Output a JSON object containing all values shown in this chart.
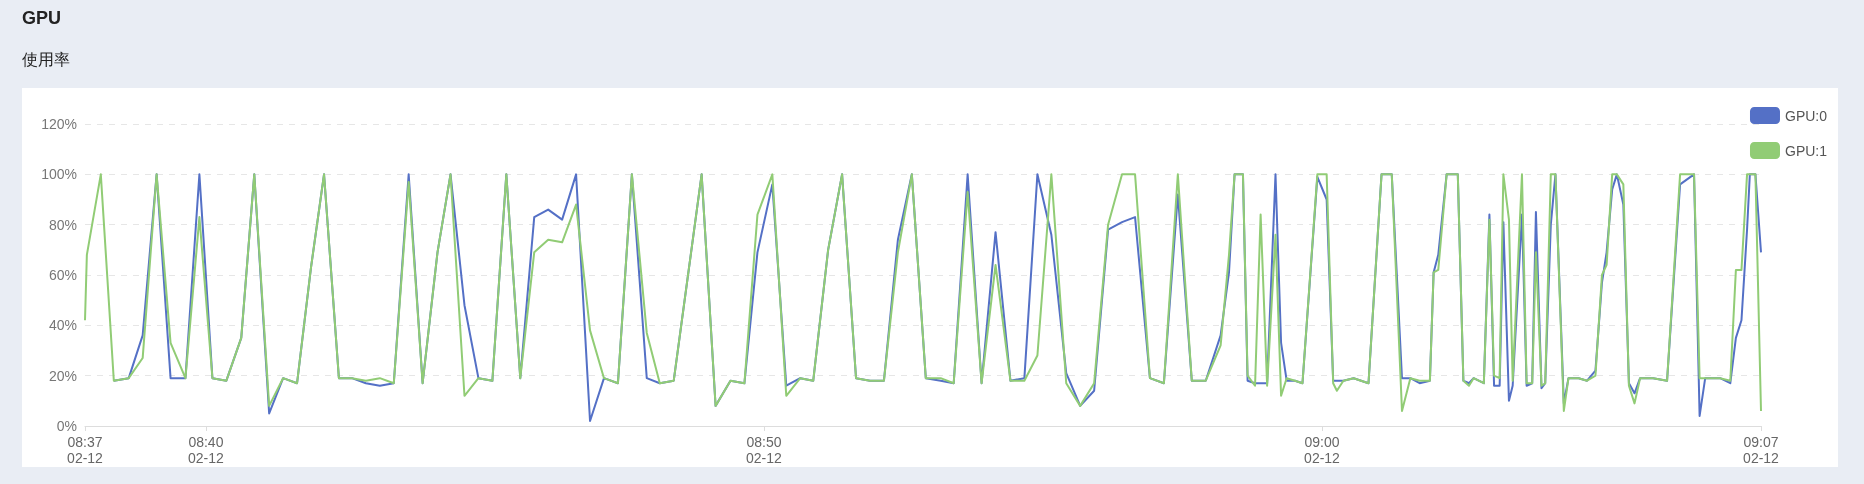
{
  "chart_data": {
    "type": "line",
    "title": "GPU",
    "subtitle": "使用率",
    "marker": "none",
    "grid": "y",
    "legend": "top right",
    "xlim": [
      "--02-12T08:37:50",
      "--02-12T09:07:52"
    ],
    "xticks": [
      {
        "value": "--02-12T08:37:50",
        "label": "08:37\n02-12"
      },
      {
        "value": "--02-12T08:40",
        "label": "08:40\n02-12"
      },
      {
        "value": "--02-12T08:50",
        "label": "08:50\n02-12"
      },
      {
        "value": "--02-12T09:00",
        "label": "09:00\n02-12"
      },
      {
        "value": "--02-12T09:07:52",
        "label": "09:07\n02-12"
      }
    ],
    "ylim": [
      0,
      120
    ],
    "yticks": [
      {
        "value": 0,
        "label": "0%"
      },
      {
        "value": 20,
        "label": "20%"
      },
      {
        "value": 40,
        "label": "40%"
      },
      {
        "value": 60,
        "label": "60%"
      },
      {
        "value": 80,
        "label": "80%"
      },
      {
        "value": 100,
        "label": "100%"
      },
      {
        "value": 120,
        "label": "120%"
      }
    ],
    "x": [
      "--02-12T08:37:50",
      "--02-12T08:37:52",
      "--02-12T08:38:07",
      "--02-12T08:38:21",
      "--02-12T08:38:37",
      "--02-12T08:38:52",
      "--02-12T08:39:07",
      "--02-12T08:39:22",
      "--02-12T08:39:38",
      "--02-12T08:39:53",
      "--02-12T08:40:07",
      "--02-12T08:40:22",
      "--02-12T08:40:38",
      "--02-12T08:40:52",
      "--02-12T08:41:08",
      "--02-12T08:41:23",
      "--02-12T08:41:38",
      "--02-12T08:41:53",
      "--02-12T08:42:07",
      "--02-12T08:42:23",
      "--02-12T08:42:37",
      "--02-12T08:42:52",
      "--02-12T08:43:07",
      "--02-12T08:43:22",
      "--02-12T08:43:38",
      "--02-12T08:43:53",
      "--02-12T08:44:09",
      "--02-12T08:44:23",
      "--02-12T08:44:38",
      "--02-12T08:44:53",
      "--02-12T08:45:08",
      "--02-12T08:45:23",
      "--02-12T08:45:38",
      "--02-12T08:45:53",
      "--02-12T08:46:08",
      "--02-12T08:46:23",
      "--02-12T08:46:38",
      "--02-12T08:46:53",
      "--02-12T08:47:08",
      "--02-12T08:47:23",
      "--02-12T08:47:38",
      "--02-12T08:47:54",
      "--02-12T08:48:08",
      "--02-12T08:48:23",
      "--02-12T08:48:53",
      "--02-12T08:49:08",
      "--02-12T08:49:24",
      "--02-12T08:49:39",
      "--02-12T08:49:53",
      "--02-12T08:50:09",
      "--02-12T08:50:24",
      "--02-12T08:50:39",
      "--02-12T08:50:53",
      "--02-12T08:51:09",
      "--02-12T08:51:24",
      "--02-12T08:51:39",
      "--02-12T08:51:54",
      "--02-12T08:52:09",
      "--02-12T08:52:24",
      "--02-12T08:52:39",
      "--02-12T08:52:54",
      "--02-12T08:53:10",
      "--02-12T08:53:24",
      "--02-12T08:53:39",
      "--02-12T08:53:54",
      "--02-12T08:54:09",
      "--02-12T08:54:25",
      "--02-12T08:54:40",
      "--02-12T08:54:54",
      "--02-12T08:55:09",
      "--02-12T08:55:25",
      "--02-12T08:55:40",
      "--02-12T08:55:55",
      "--02-12T08:56:10",
      "--02-12T08:56:25",
      "--02-12T08:56:39",
      "--02-12T08:56:55",
      "--02-12T08:57:10",
      "--02-12T08:57:25",
      "--02-12T08:57:40",
      "--02-12T08:57:55",
      "--02-12T08:58:11",
      "--02-12T08:58:20",
      "--02-12T08:58:26",
      "--02-12T08:58:35",
      "--02-12T08:58:40",
      "--02-12T08:58:48",
      "--02-12T08:58:54",
      "--02-12T08:59:01",
      "--02-12T08:59:10",
      "--02-12T08:59:16",
      "--02-12T08:59:22",
      "--02-12T08:59:31",
      "--02-12T08:59:39",
      "--02-12T08:59:55",
      "--02-12T09:00:05",
      "--02-12T09:00:12",
      "--02-12T09:00:16",
      "--02-12T09:00:23",
      "--02-12T09:00:34",
      "--02-12T09:00:50",
      "--02-12T09:01:04",
      "--02-12T09:01:15",
      "--02-12T09:01:26",
      "--02-12T09:01:35",
      "--02-12T09:01:45",
      "--02-12T09:01:56",
      "--02-12T09:02:00",
      "--02-12T09:02:05",
      "--02-12T09:02:14",
      "--02-12T09:02:26",
      "--02-12T09:02:32",
      "--02-12T09:02:38",
      "--02-12T09:02:43",
      "--02-12T09:02:54",
      "--02-12T09:03:00",
      "--02-12T09:03:05",
      "--02-12T09:03:11",
      "--02-12T09:03:15",
      "--02-12T09:03:21",
      "--02-12T09:03:25",
      "--02-12T09:03:35",
      "--02-12T09:03:40",
      "--02-12T09:03:46",
      "--02-12T09:03:50",
      "--02-12T09:03:56",
      "--02-12T09:04:00",
      "--02-12T09:04:06",
      "--02-12T09:04:11",
      "--02-12T09:04:20",
      "--02-12T09:04:25",
      "--02-12T09:04:36",
      "--02-12T09:04:45",
      "--02-12T09:04:54",
      "--02-12T09:05:01",
      "--02-12T09:05:06",
      "--02-12T09:05:12",
      "--02-12T09:05:17",
      "--02-12T09:05:24",
      "--02-12T09:05:30",
      "--02-12T09:05:36",
      "--02-12T09:05:42",
      "--02-12T09:05:56",
      "--02-12T09:06:11",
      "--02-12T09:06:25",
      "--02-12T09:06:40",
      "--02-12T09:06:46",
      "--02-12T09:06:52",
      "--02-12T09:07:08",
      "--02-12T09:07:19",
      "--02-12T09:07:25",
      "--02-12T09:07:31",
      "--02-12T09:07:37",
      "--02-12T09:07:40",
      "--02-12T09:07:46",
      "--02-12T09:07:52"
    ],
    "series": [
      {
        "name": "GPU:0",
        "color": "#5470c6",
        "values": [
          null,
          null,
          null,
          18,
          19,
          36,
          100,
          19,
          19,
          100,
          19,
          18,
          35,
          100,
          5,
          19,
          17,
          63,
          100,
          19,
          19,
          17,
          16,
          17,
          100,
          17,
          69,
          100,
          48,
          19,
          18,
          100,
          19,
          83,
          86,
          82,
          100,
          2,
          19,
          17,
          100,
          19,
          17,
          18,
          100,
          8,
          18,
          17,
          69,
          96,
          16,
          19,
          18,
          70,
          100,
          19,
          18,
          18,
          74,
          100,
          19,
          18,
          17,
          100,
          17,
          77,
          18,
          19,
          100,
          76,
          21,
          8,
          14,
          78,
          81,
          83,
          19,
          17,
          92,
          18,
          18,
          36,
          61,
          100,
          100,
          18,
          17,
          17,
          17,
          100,
          33,
          18,
          18,
          17,
          99,
          90,
          18,
          18,
          18,
          19,
          17,
          100,
          100,
          19,
          19,
          17,
          18,
          61,
          68,
          100,
          100,
          18,
          17,
          19,
          17,
          84,
          16,
          16,
          81,
          10,
          16,
          84,
          16,
          17,
          85,
          15,
          17,
          80,
          100,
          9,
          19,
          19,
          18,
          22,
          57,
          69,
          94,
          100,
          88,
          17,
          13,
          19,
          19,
          18,
          96,
          100,
          4,
          19,
          19,
          17,
          35,
          42,
          78,
          100,
          100,
          69
        ]
      },
      {
        "name": "GPU:1",
        "color": "#91cc75",
        "values": [
          42,
          68,
          100,
          18,
          19,
          27,
          100,
          33,
          19,
          83,
          19,
          18,
          35,
          100,
          8,
          19,
          17,
          63,
          100,
          19,
          19,
          18,
          19,
          17,
          97,
          17,
          69,
          100,
          12,
          19,
          18,
          100,
          19,
          69,
          74,
          73,
          88,
          38,
          19,
          17,
          100,
          37,
          17,
          18,
          100,
          8,
          18,
          17,
          84,
          100,
          12,
          19,
          18,
          70,
          100,
          19,
          18,
          18,
          69,
          100,
          19,
          19,
          17,
          93,
          17,
          64,
          18,
          18,
          28,
          100,
          17,
          8,
          17,
          80,
          100,
          100,
          19,
          17,
          100,
          18,
          18,
          32,
          68,
          100,
          100,
          20,
          16,
          84,
          16,
          76,
          12,
          19,
          18,
          17,
          100,
          100,
          17,
          14,
          18,
          19,
          17,
          100,
          100,
          6,
          19,
          18,
          18,
          61,
          62,
          100,
          100,
          18,
          16,
          19,
          17,
          82,
          20,
          19,
          100,
          82,
          18,
          100,
          17,
          17,
          69,
          16,
          17,
          100,
          100,
          6,
          19,
          19,
          18,
          20,
          60,
          64,
          100,
          100,
          96,
          16,
          9,
          19,
          19,
          18,
          100,
          100,
          19,
          19,
          19,
          18,
          62,
          62,
          100,
          100,
          100,
          6
        ]
      }
    ]
  }
}
